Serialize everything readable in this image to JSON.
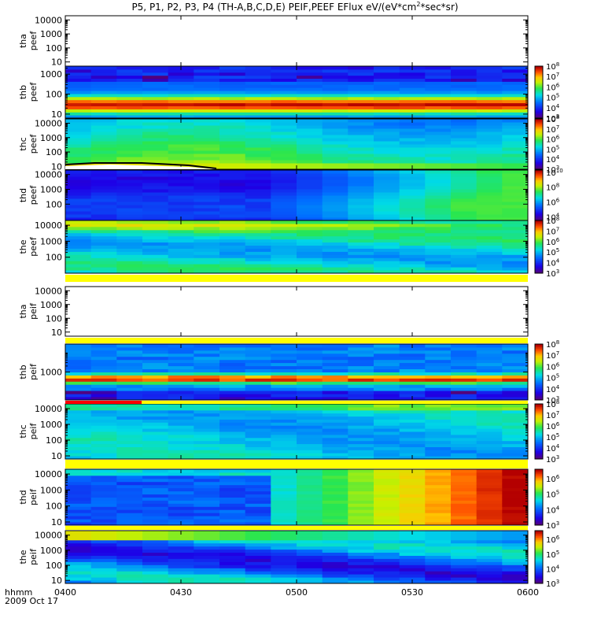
{
  "chart_data": {
    "type": "heatmap",
    "title": "P5, P1, P2, P3, P4 (TH-A,B,C,D,E) PEIF,PEEF EFlux eV/(eV*cm",
    "title_sup": "2",
    "title_end": "*sec*sr)",
    "x_title": "hhmm",
    "date_label": "2009 Oct 17",
    "x_ticks": [
      "0400",
      "0430",
      "0500",
      "0530",
      "0600"
    ],
    "time_range": [
      "04:00",
      "06:00"
    ],
    "colormap": "rainbow",
    "panels": [
      {
        "probe": "tha",
        "product": "peef",
        "yticks": [
          "10",
          "100",
          "1000",
          "10000"
        ],
        "ymin_log": 0.7,
        "ymax_log": 4.3,
        "data": false,
        "colorbar": null,
        "pattern": "none"
      },
      {
        "probe": "thb",
        "product": "peef",
        "yticks": [
          "10",
          "100",
          "1000"
        ],
        "ymin_log": 0.8,
        "ymax_log": 3.4,
        "data": true,
        "colorbar": {
          "ticks": [
            "10^3",
            "10^4",
            "10^5",
            "10^6",
            "10^7",
            "10^8"
          ],
          "min_log": 3,
          "max_log": 8
        },
        "pattern": "thb_peef"
      },
      {
        "probe": "thc",
        "product": "peef",
        "yticks": [
          "10",
          "100",
          "1000",
          "10000"
        ],
        "ymin_log": 0.8,
        "ymax_log": 4.3,
        "data": true,
        "colorbar": {
          "ticks": [
            "10^3",
            "10^4",
            "10^5",
            "10^6",
            "10^7",
            "10^8"
          ],
          "min_log": 3,
          "max_log": 8
        },
        "pattern": "thc_peef"
      },
      {
        "probe": "thd",
        "product": "peef",
        "yticks": [
          "100",
          "1000",
          "10000"
        ],
        "ymin_log": 0.9,
        "ymax_log": 4.3,
        "data": true,
        "colorbar": {
          "ticks": [
            "10^4",
            "10^6",
            "10^8",
            "10^10"
          ],
          "min_log": 3.5,
          "max_log": 10.3
        },
        "pattern": "thd_peef"
      },
      {
        "probe": "the",
        "product": "peef",
        "yticks": [
          "100",
          "1000",
          "10000"
        ],
        "ymin_log": 1.0,
        "ymax_log": 4.3,
        "data": true,
        "colorbar": {
          "ticks": [
            "10^3",
            "10^4",
            "10^5",
            "10^6",
            "10^7",
            "10^8"
          ],
          "min_log": 3,
          "max_log": 8
        },
        "pattern": "the_peef"
      },
      {
        "probe": "tha",
        "product": "peif",
        "yticks": [
          "10",
          "100",
          "1000",
          "10000"
        ],
        "ymin_log": 0.7,
        "ymax_log": 4.3,
        "data": false,
        "colorbar": null,
        "pattern": "none"
      },
      {
        "probe": "thb",
        "product": "peif",
        "yticks": [
          "1000"
        ],
        "ymin_log": 1.6,
        "ymax_log": 4.4,
        "data": true,
        "colorbar": {
          "ticks": [
            "10^3",
            "10^4",
            "10^5",
            "10^6",
            "10^7",
            "10^8"
          ],
          "min_log": 3,
          "max_log": 8
        },
        "pattern": "thb_peif"
      },
      {
        "probe": "thc",
        "product": "peif",
        "yticks": [
          "10",
          "100",
          "1000",
          "10000"
        ],
        "ymin_log": 0.8,
        "ymax_log": 4.3,
        "data": true,
        "colorbar": {
          "ticks": [
            "10^3",
            "10^4",
            "10^5",
            "10^6",
            "10^7",
            "10^8"
          ],
          "min_log": 3,
          "max_log": 8
        },
        "pattern": "thc_peif"
      },
      {
        "probe": "thd",
        "product": "peif",
        "yticks": [
          "10",
          "100",
          "1000",
          "10000"
        ],
        "ymin_log": 0.8,
        "ymax_log": 4.3,
        "data": true,
        "colorbar": {
          "ticks": [
            "10^3",
            "10^4",
            "10^5",
            "10^6"
          ],
          "min_log": 3,
          "max_log": 6.6
        },
        "pattern": "thd_peif"
      },
      {
        "probe": "the",
        "product": "peif",
        "yticks": [
          "10",
          "100",
          "1000",
          "10000"
        ],
        "ymin_log": 0.8,
        "ymax_log": 4.3,
        "data": true,
        "colorbar": {
          "ticks": [
            "10^3",
            "10^4",
            "10^5",
            "10^6"
          ],
          "min_log": 3,
          "max_log": 6.6
        },
        "pattern": "the_peif"
      }
    ]
  }
}
